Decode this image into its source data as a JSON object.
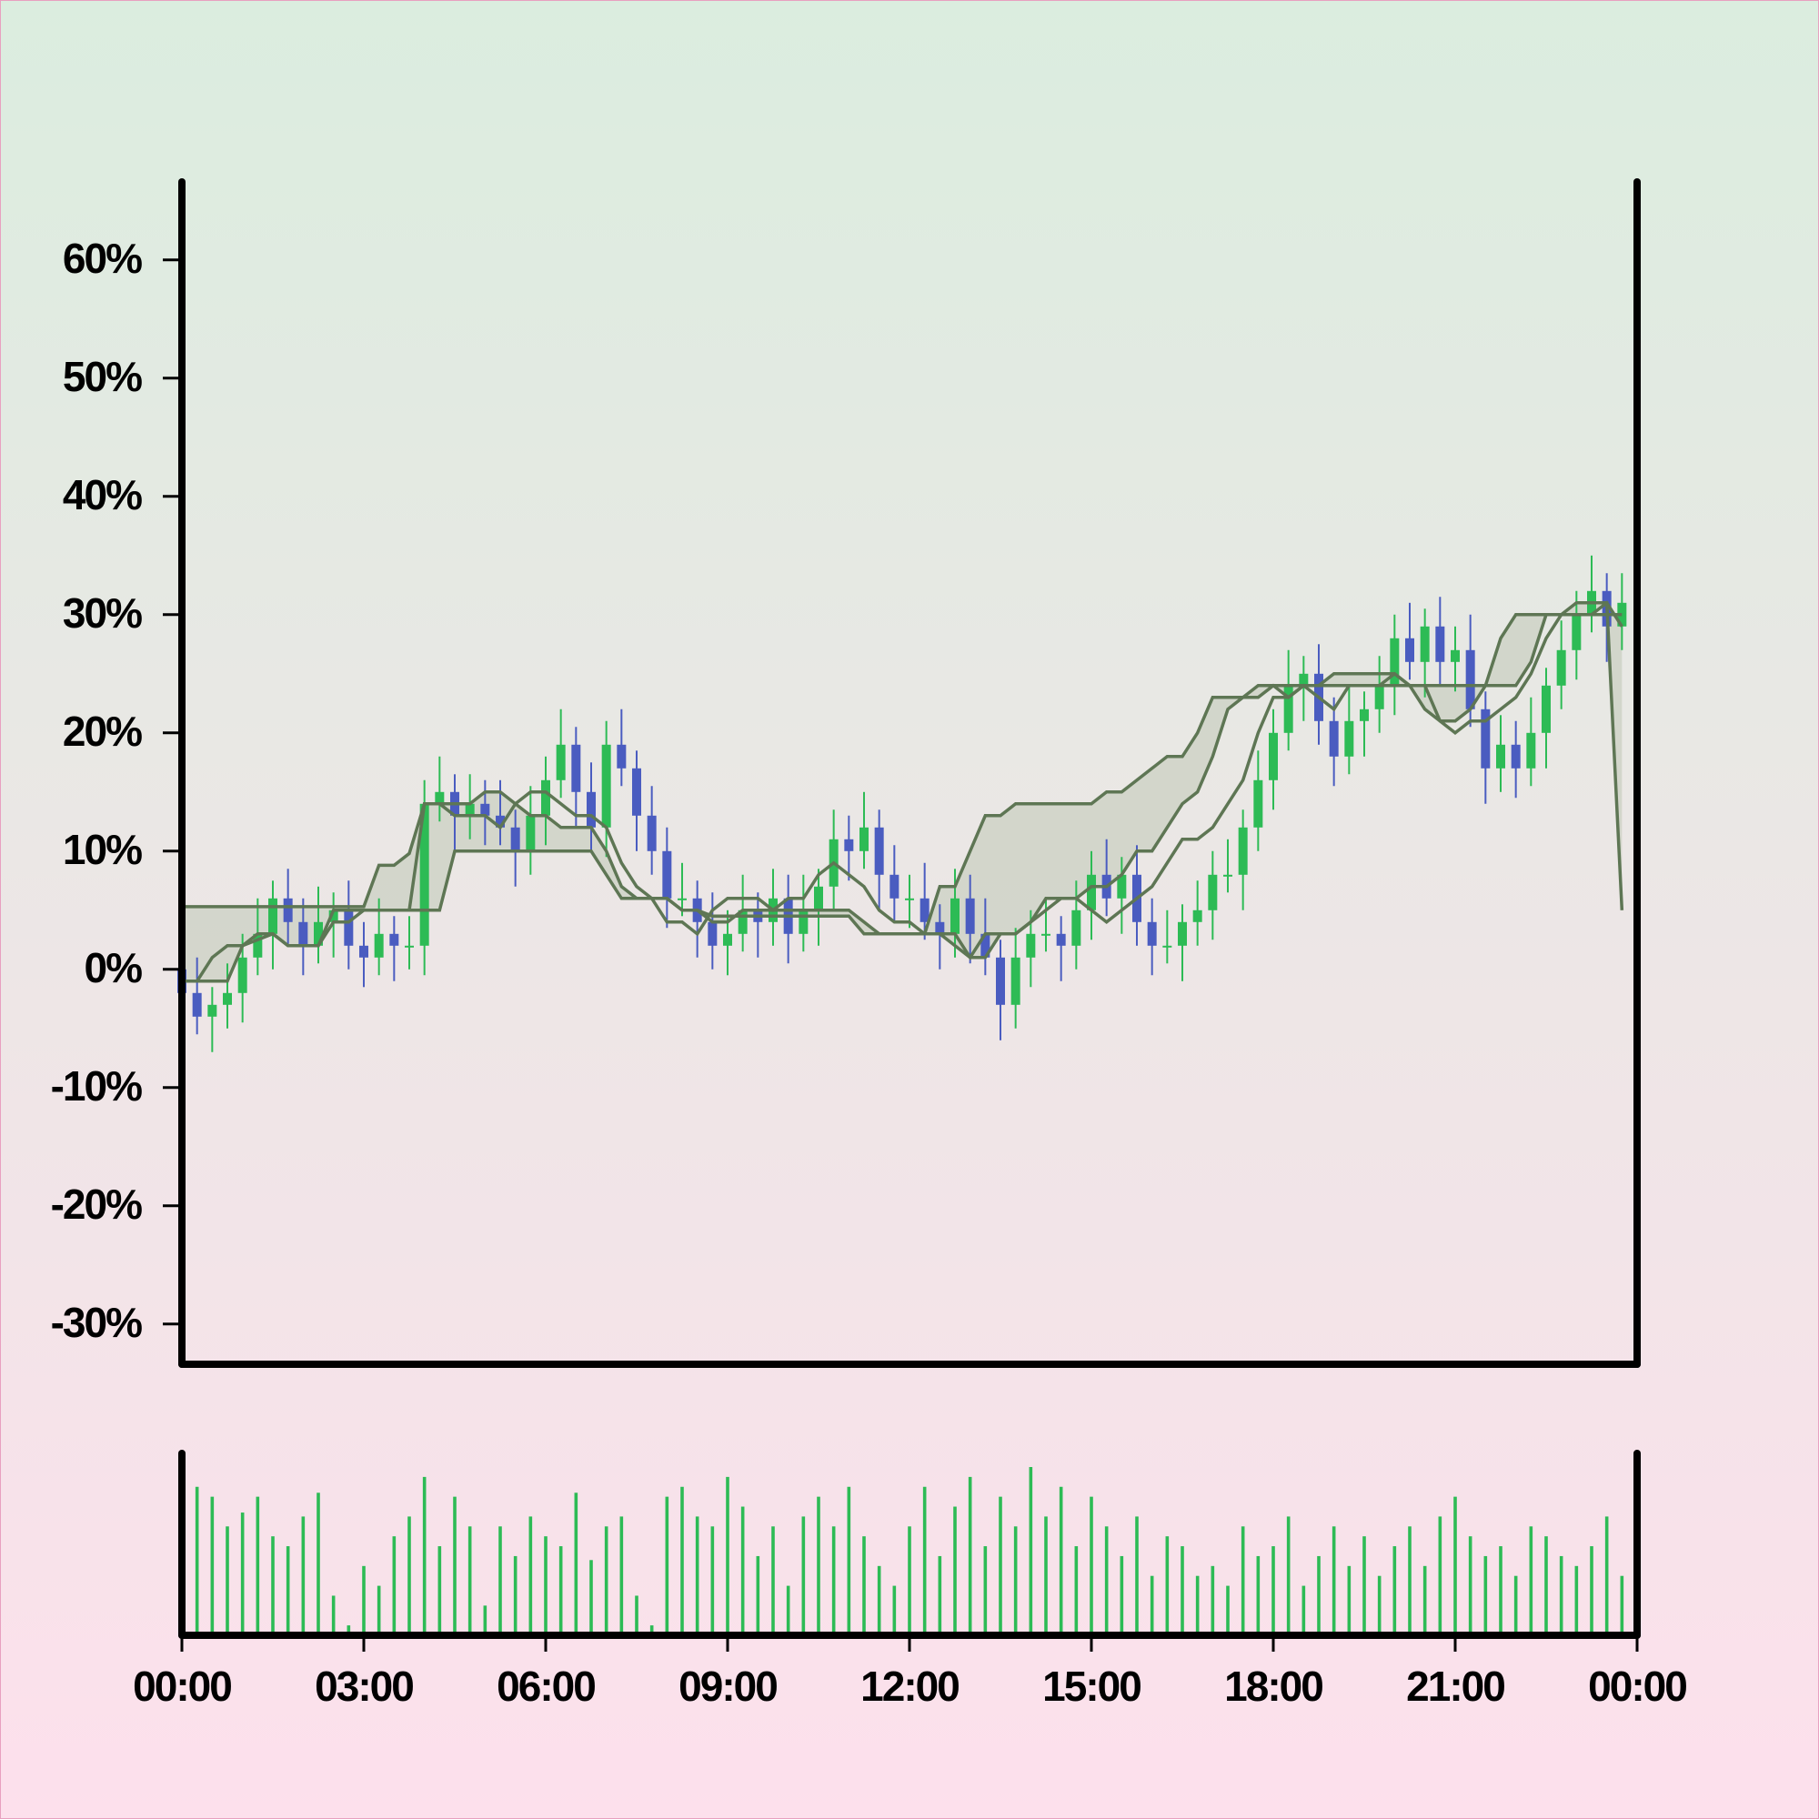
{
  "chart_data": {
    "type": "candlestick",
    "x": [
      0,
      15,
      30,
      45,
      60,
      75,
      90,
      105,
      120,
      135,
      150,
      165,
      180,
      195,
      210,
      225,
      240,
      255,
      270,
      285,
      300,
      315,
      330,
      345,
      360,
      375,
      390,
      405,
      420,
      435,
      450,
      465,
      480,
      495,
      510,
      525,
      540,
      555,
      570,
      585,
      600,
      615,
      630,
      645,
      660,
      675,
      690,
      705,
      720,
      735,
      750,
      765,
      780,
      795,
      810,
      825,
      840,
      855,
      870,
      885,
      900,
      915,
      930,
      945,
      960,
      975,
      990,
      1005,
      1020,
      1035,
      1050,
      1065,
      1080,
      1095,
      1110,
      1125,
      1140,
      1155,
      1170,
      1185,
      1200,
      1215,
      1230,
      1245,
      1260,
      1275,
      1290,
      1305,
      1320,
      1335,
      1350,
      1365,
      1380,
      1395,
      1410,
      1425
    ],
    "open": [
      0,
      -2,
      -4,
      -3,
      -2,
      1,
      3,
      6,
      4,
      2,
      4,
      5,
      2,
      1,
      3,
      2,
      2,
      14,
      15,
      13,
      14,
      13,
      12,
      10,
      13,
      16,
      19,
      15,
      12,
      19,
      17,
      13,
      10,
      6,
      6,
      4,
      2,
      3,
      5,
      4,
      6,
      3,
      5,
      7,
      11,
      10,
      12,
      8,
      6,
      6,
      4,
      3,
      6,
      3,
      1,
      -3,
      1,
      3,
      3,
      2,
      5,
      8,
      6,
      8,
      4,
      2,
      2,
      4,
      5,
      8,
      8,
      12,
      16,
      20,
      24,
      25,
      21,
      18,
      21,
      22,
      24,
      28,
      26,
      29,
      26,
      27,
      22,
      17,
      19,
      17,
      20,
      24,
      27,
      30,
      32,
      29
    ],
    "high": [
      2,
      1,
      -1.5,
      0.5,
      3,
      6,
      7.5,
      8.5,
      6,
      7,
      6.5,
      7.5,
      4,
      6,
      4.5,
      4.5,
      16,
      18,
      16.5,
      16.5,
      16,
      16,
      13.5,
      15.5,
      18,
      22,
      20.5,
      17.5,
      21,
      22,
      18.5,
      15.5,
      12,
      9,
      7.5,
      6.5,
      5,
      8,
      6.5,
      8.5,
      8,
      8,
      8.5,
      13.5,
      13,
      15,
      13.5,
      10.5,
      8,
      9,
      5.5,
      8.5,
      8,
      6,
      2.5,
      3.5,
      5,
      6,
      4.5,
      7.5,
      10,
      11,
      9.5,
      10.5,
      6,
      5,
      5.5,
      7.5,
      10,
      11,
      13.5,
      18.5,
      22,
      27,
      26.5,
      27.5,
      23,
      24,
      23.5,
      26.5,
      30,
      31,
      30.5,
      31.5,
      29,
      30,
      23.5,
      21.5,
      21,
      23,
      25.5,
      29.5,
      32,
      35,
      33.5,
      33.5
    ],
    "low": [
      -4.5,
      -5.5,
      -7,
      -5,
      -4.5,
      -0.5,
      0,
      2,
      -0.5,
      0.5,
      1,
      0,
      -1.5,
      -0.5,
      -1,
      0,
      -0.5,
      12.5,
      10,
      11,
      10.5,
      10.5,
      7,
      8,
      10.5,
      14.5,
      12,
      10,
      9.5,
      15.5,
      10,
      8,
      3.5,
      4.5,
      1,
      0,
      -0.5,
      1.5,
      1,
      2,
      0.5,
      1.5,
      2,
      5,
      7.5,
      8.5,
      5,
      4,
      3.5,
      2.5,
      0,
      1,
      0.5,
      -0.5,
      -6,
      -5,
      -1.5,
      1.5,
      -1,
      0,
      2.5,
      4.5,
      3,
      2,
      -0.5,
      0.5,
      -1,
      2,
      2.5,
      6.5,
      5,
      10,
      13.5,
      18.5,
      21,
      19,
      15.5,
      16.5,
      18,
      20,
      21.5,
      24.5,
      23,
      24,
      23.5,
      20.5,
      14,
      15,
      14.5,
      15.5,
      17,
      22,
      24.5,
      28.5,
      26,
      27
    ],
    "close": [
      -2,
      -4,
      -3,
      -2,
      1,
      3,
      6,
      4,
      2,
      4,
      5,
      2,
      1,
      3,
      2,
      2,
      14,
      15,
      13,
      14,
      13,
      12,
      10,
      13,
      16,
      19,
      15,
      12,
      19,
      17,
      13,
      10,
      6,
      6,
      4,
      2,
      3,
      5,
      4,
      6,
      3,
      5,
      7,
      11,
      10,
      12,
      8,
      6,
      6,
      4,
      3,
      6,
      3,
      1,
      -3,
      1,
      3,
      3,
      2,
      5,
      8,
      6,
      8,
      4,
      2,
      2,
      4,
      5,
      8,
      8,
      12,
      16,
      20,
      24,
      25,
      21,
      18,
      21,
      22,
      24,
      28,
      26,
      29,
      26,
      27,
      22,
      17,
      19,
      17,
      20,
      24,
      27,
      30,
      32,
      29,
      31
    ],
    "up_color": "#2dbb55",
    "down_color": "#4a5cc0",
    "lines": [
      {
        "color": "#5e7654",
        "values": [
          5.3,
          5.3,
          5.3,
          5.3,
          5.3,
          5.3,
          5.3,
          5.3,
          5.3,
          5.3,
          5.3,
          5.3,
          5.3,
          8.8,
          8.8,
          9.8,
          14,
          14,
          14,
          14,
          15,
          15,
          14,
          13,
          13,
          12,
          12,
          12,
          10,
          7,
          6,
          6,
          6,
          5,
          5,
          4,
          4,
          5,
          5,
          5,
          5,
          5,
          5,
          5,
          5,
          4,
          3,
          3,
          3,
          3,
          7,
          7,
          10,
          13,
          13,
          14,
          14,
          14,
          14,
          14,
          14,
          15,
          15,
          16,
          17,
          18,
          18,
          20,
          23,
          23,
          23,
          24,
          24,
          24,
          24,
          24,
          24,
          24,
          24,
          24,
          24,
          24,
          24,
          24,
          24,
          24,
          24,
          24,
          24,
          26,
          30,
          30,
          31,
          31,
          31,
          5
        ]
      },
      {
        "color": "#5e7654",
        "values": [
          -1,
          -1,
          -1,
          -1,
          2,
          2.5,
          3,
          2,
          2,
          2,
          5,
          5,
          5,
          5,
          5,
          5,
          5,
          5,
          10,
          10,
          10,
          10,
          10,
          10,
          10,
          10,
          10,
          10,
          8,
          6,
          6,
          6,
          6,
          5,
          5,
          4.5,
          4.5,
          4.5,
          4.5,
          4.5,
          4.5,
          4.5,
          4.5,
          4.5,
          4.5,
          3,
          3,
          3,
          3,
          3,
          3,
          2,
          1,
          1,
          3,
          3,
          4,
          6,
          6,
          6,
          7,
          7,
          8,
          10,
          10,
          12,
          14,
          15,
          18,
          22,
          23,
          23,
          24,
          23,
          24,
          24,
          25,
          25,
          25,
          25,
          25,
          24,
          22,
          21,
          21,
          22,
          24,
          28,
          30,
          30,
          30,
          30,
          30,
          30,
          31,
          29
        ]
      },
      {
        "color": "#5e7654",
        "values": [
          -1,
          -1,
          1,
          2,
          2,
          3,
          3,
          2,
          2,
          2,
          4,
          4,
          5,
          5,
          5,
          5,
          14,
          14,
          13,
          13,
          13,
          12,
          14,
          15,
          15,
          14,
          13,
          13,
          12,
          9,
          7,
          6,
          4,
          4,
          3,
          5,
          6,
          6,
          6,
          5,
          6,
          6,
          8,
          9,
          8,
          7,
          5,
          4,
          4,
          3,
          3,
          3,
          1,
          3,
          3,
          3,
          4,
          5,
          6,
          6,
          5,
          4,
          5,
          6,
          7,
          9,
          11,
          11,
          12,
          14,
          16,
          20,
          23,
          23,
          24,
          23,
          22,
          24,
          24,
          24,
          25,
          24,
          24,
          21,
          20,
          21,
          21,
          22,
          23,
          25,
          28,
          30,
          30,
          30,
          30,
          30
        ]
      }
    ],
    "band_fill": {
      "between": [
        0,
        1
      ],
      "color": "#c9cfc0"
    },
    "volume": {
      "color": "#2dbb55",
      "values": [
        40,
        75,
        70,
        55,
        62,
        70,
        50,
        45,
        60,
        72,
        20,
        5,
        35,
        25,
        50,
        60,
        80,
        45,
        70,
        55,
        15,
        55,
        40,
        60,
        50,
        45,
        72,
        38,
        55,
        60,
        20,
        5,
        70,
        75,
        60,
        55,
        80,
        65,
        40,
        55,
        25,
        60,
        70,
        55,
        75,
        50,
        35,
        25,
        55,
        75,
        40,
        65,
        80,
        45,
        70,
        55,
        85,
        60,
        75,
        45,
        70,
        55,
        40,
        60,
        30,
        50,
        45,
        30,
        35,
        25,
        55,
        40,
        45,
        60,
        25,
        40,
        55,
        35,
        50,
        30,
        45,
        55,
        35,
        60,
        70,
        50,
        40,
        45,
        30,
        55,
        50,
        40,
        35,
        45,
        60,
        30
      ]
    },
    "xlim": [
      0,
      1440
    ],
    "xticks": [
      {
        "value": 0,
        "label": "00:00"
      },
      {
        "value": 180,
        "label": "03:00"
      },
      {
        "value": 360,
        "label": "06:00"
      },
      {
        "value": 540,
        "label": "09:00"
      },
      {
        "value": 720,
        "label": "12:00"
      },
      {
        "value": 900,
        "label": "15:00"
      },
      {
        "value": 1080,
        "label": "18:00"
      },
      {
        "value": 1260,
        "label": "21:00"
      },
      {
        "value": 1440,
        "label": "00:00"
      }
    ],
    "ylim": [
      -33.4,
      66.6
    ],
    "yticks": [
      {
        "value": -30,
        "label": "-30%"
      },
      {
        "value": -20,
        "label": "-20%"
      },
      {
        "value": -10,
        "label": "-10%"
      },
      {
        "value": 0,
        "label": "0%"
      },
      {
        "value": 10,
        "label": "10%"
      },
      {
        "value": 20,
        "label": "20%"
      },
      {
        "value": 30,
        "label": "30%"
      },
      {
        "value": 40,
        "label": "40%"
      },
      {
        "value": 50,
        "label": "50%"
      },
      {
        "value": 60,
        "label": "60%"
      }
    ]
  }
}
